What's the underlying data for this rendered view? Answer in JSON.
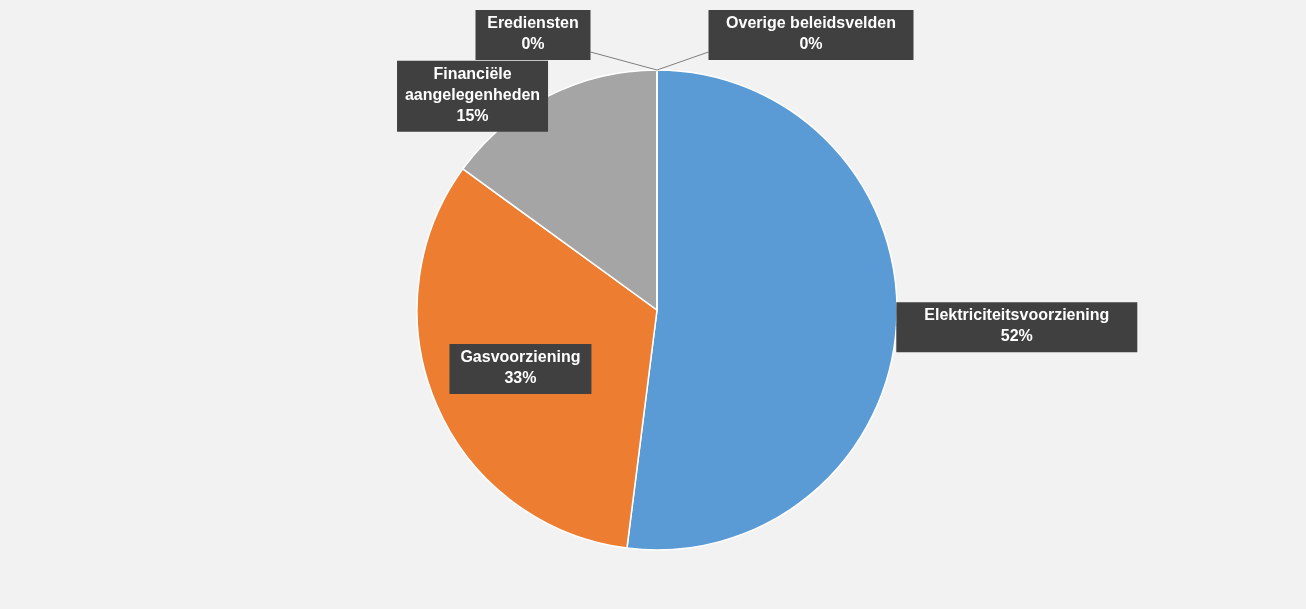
{
  "chart_data": {
    "type": "pie",
    "categories": [
      "Elektriciteitsvoorziening",
      "Gasvoorziening",
      "Financiële aangelegenheden",
      "Erediensten",
      "Overige beleidsvelden"
    ],
    "values": [
      52,
      33,
      15,
      0,
      0
    ],
    "colors": [
      "#5b9bd5",
      "#ed7d31",
      "#a5a5a5",
      "#ffc000",
      "#4472c4"
    ],
    "value_labels": [
      "52%",
      "33%",
      "15%",
      "0%",
      "0%"
    ]
  }
}
